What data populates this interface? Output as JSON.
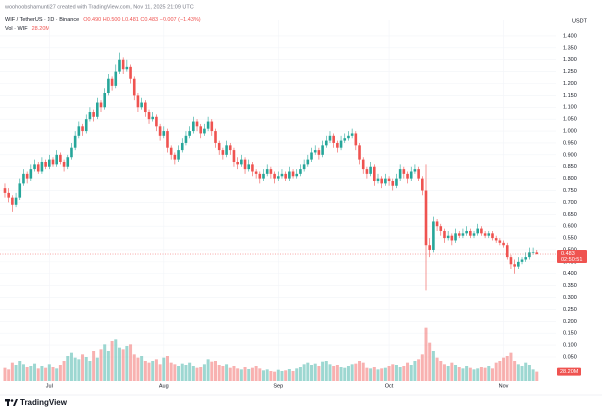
{
  "header": {
    "credit": "woohoobshamunti27 created with TradingView.com, Nov 11, 2025 21:09 UTC"
  },
  "chart_data": {
    "type": "candlestick",
    "symbol": "WIF / TetherUS · 1D · Binance",
    "ohlc_text": "O0.490 H0.500 L0.481 C0.483 −0.007 (−1.43%)",
    "currency": "USDT",
    "countdown": "02:50:51",
    "up_color": "#26a69a",
    "down_color": "#ef5350",
    "grid": true,
    "xlim": [
      -1.35,
      149.2
    ],
    "xticks": [
      {
        "value": 12,
        "label": "Jul"
      },
      {
        "value": 43,
        "label": "Aug"
      },
      {
        "value": 74,
        "label": "Sep"
      },
      {
        "value": 104,
        "label": "Oct"
      },
      {
        "value": 135,
        "label": "Nov"
      }
    ],
    "ylim": [
      -0.114,
      1.467
    ],
    "yticks": [
      {
        "value": 0.05,
        "label": "0.050"
      },
      {
        "value": 0.1,
        "label": "0.100"
      },
      {
        "value": 0.15,
        "label": "0.150"
      },
      {
        "value": 0.2,
        "label": "0.200"
      },
      {
        "value": 0.25,
        "label": "0.250"
      },
      {
        "value": 0.3,
        "label": "0.300"
      },
      {
        "value": 0.35,
        "label": "0.350"
      },
      {
        "value": 0.4,
        "label": "0.400"
      },
      {
        "value": 0.45,
        "label": "0.450"
      },
      {
        "value": 0.5,
        "label": "0.500"
      },
      {
        "value": 0.55,
        "label": "0.550"
      },
      {
        "value": 0.6,
        "label": "0.600"
      },
      {
        "value": 0.65,
        "label": "0.650"
      },
      {
        "value": 0.7,
        "label": "0.700"
      },
      {
        "value": 0.75,
        "label": "0.750"
      },
      {
        "value": 0.8,
        "label": "0.800"
      },
      {
        "value": 0.85,
        "label": "0.850"
      },
      {
        "value": 0.9,
        "label": "0.900"
      },
      {
        "value": 0.95,
        "label": "0.950"
      },
      {
        "value": 1,
        "label": "1.000"
      },
      {
        "value": 1.05,
        "label": "1.050"
      },
      {
        "value": 1.1,
        "label": "1.100"
      },
      {
        "value": 1.15,
        "label": "1.150"
      },
      {
        "value": 1.2,
        "label": "1.200"
      },
      {
        "value": 1.25,
        "label": "1.250"
      },
      {
        "value": 1.3,
        "label": "1.300"
      },
      {
        "value": 1.35,
        "label": "1.350"
      },
      {
        "value": 1.4,
        "label": "1.400"
      }
    ],
    "candles": [
      [
        0.76,
        0.78,
        0.72,
        0.74
      ],
      [
        0.74,
        0.76,
        0.7,
        0.72
      ],
      [
        0.72,
        0.73,
        0.66,
        0.69
      ],
      [
        0.69,
        0.74,
        0.68,
        0.72
      ],
      [
        0.72,
        0.8,
        0.71,
        0.78
      ],
      [
        0.78,
        0.84,
        0.77,
        0.82
      ],
      [
        0.82,
        0.83,
        0.78,
        0.8
      ],
      [
        0.8,
        0.86,
        0.79,
        0.84
      ],
      [
        0.84,
        0.88,
        0.83,
        0.86
      ],
      [
        0.86,
        0.87,
        0.82,
        0.83
      ],
      [
        0.83,
        0.89,
        0.82,
        0.87
      ],
      [
        0.87,
        0.88,
        0.84,
        0.85
      ],
      [
        0.85,
        0.9,
        0.84,
        0.88
      ],
      [
        0.88,
        0.89,
        0.85,
        0.86
      ],
      [
        0.86,
        0.92,
        0.85,
        0.9
      ],
      [
        0.9,
        0.91,
        0.86,
        0.87
      ],
      [
        0.87,
        0.88,
        0.83,
        0.85
      ],
      [
        0.85,
        0.9,
        0.84,
        0.89
      ],
      [
        0.89,
        0.95,
        0.88,
        0.93
      ],
      [
        0.93,
        1.0,
        0.92,
        0.98
      ],
      [
        0.98,
        1.04,
        0.97,
        1.02
      ],
      [
        1.02,
        1.03,
        0.98,
        1.0
      ],
      [
        1.0,
        1.07,
        0.99,
        1.05
      ],
      [
        1.05,
        1.1,
        1.04,
        1.08
      ],
      [
        1.08,
        1.09,
        1.04,
        1.06
      ],
      [
        1.06,
        1.14,
        1.05,
        1.12
      ],
      [
        1.12,
        1.13,
        1.08,
        1.1
      ],
      [
        1.1,
        1.18,
        1.09,
        1.16
      ],
      [
        1.16,
        1.24,
        1.15,
        1.22
      ],
      [
        1.22,
        1.23,
        1.17,
        1.19
      ],
      [
        1.19,
        1.28,
        1.18,
        1.25
      ],
      [
        1.25,
        1.33,
        1.24,
        1.3
      ],
      [
        1.3,
        1.31,
        1.24,
        1.26
      ],
      [
        1.26,
        1.3,
        1.25,
        1.27
      ],
      [
        1.27,
        1.28,
        1.2,
        1.22
      ],
      [
        1.22,
        1.23,
        1.13,
        1.15
      ],
      [
        1.15,
        1.16,
        1.08,
        1.1
      ],
      [
        1.1,
        1.14,
        1.09,
        1.12
      ],
      [
        1.12,
        1.13,
        1.06,
        1.08
      ],
      [
        1.08,
        1.09,
        1.03,
        1.05
      ],
      [
        1.05,
        1.08,
        1.04,
        1.06
      ],
      [
        1.06,
        1.07,
        1.0,
        1.02
      ],
      [
        1.02,
        1.03,
        0.96,
        0.98
      ],
      [
        0.98,
        1.02,
        0.97,
        1.0
      ],
      [
        1.0,
        1.01,
        0.91,
        0.93
      ],
      [
        0.93,
        0.94,
        0.88,
        0.9
      ],
      [
        0.9,
        0.91,
        0.86,
        0.88
      ],
      [
        0.88,
        0.94,
        0.87,
        0.92
      ],
      [
        0.92,
        0.97,
        0.91,
        0.95
      ],
      [
        0.95,
        1.0,
        0.94,
        0.98
      ],
      [
        0.98,
        1.02,
        0.97,
        1.0
      ],
      [
        1.0,
        1.06,
        0.99,
        1.04
      ],
      [
        1.04,
        1.05,
        1.0,
        1.02
      ],
      [
        1.02,
        1.03,
        0.97,
        0.99
      ],
      [
        0.99,
        1.03,
        0.98,
        1.01
      ],
      [
        1.01,
        1.06,
        1.0,
        1.04
      ],
      [
        1.04,
        1.05,
        0.98,
        1.0
      ],
      [
        1.0,
        1.01,
        0.93,
        0.95
      ],
      [
        0.95,
        0.96,
        0.9,
        0.92
      ],
      [
        0.92,
        0.93,
        0.88,
        0.9
      ],
      [
        0.9,
        0.96,
        0.89,
        0.94
      ],
      [
        0.94,
        0.95,
        0.9,
        0.92
      ],
      [
        0.92,
        0.93,
        0.85,
        0.87
      ],
      [
        0.87,
        0.89,
        0.84,
        0.86
      ],
      [
        0.86,
        0.9,
        0.85,
        0.88
      ],
      [
        0.88,
        0.89,
        0.82,
        0.84
      ],
      [
        0.84,
        0.88,
        0.83,
        0.86
      ],
      [
        0.86,
        0.87,
        0.81,
        0.83
      ],
      [
        0.83,
        0.84,
        0.8,
        0.82
      ],
      [
        0.82,
        0.83,
        0.78,
        0.8
      ],
      [
        0.8,
        0.84,
        0.79,
        0.82
      ],
      [
        0.82,
        0.86,
        0.81,
        0.84
      ],
      [
        0.84,
        0.85,
        0.8,
        0.82
      ],
      [
        0.82,
        0.83,
        0.78,
        0.8
      ],
      [
        0.8,
        0.83,
        0.79,
        0.81
      ],
      [
        0.81,
        0.84,
        0.8,
        0.82
      ],
      [
        0.82,
        0.83,
        0.79,
        0.8
      ],
      [
        0.8,
        0.85,
        0.79,
        0.83
      ],
      [
        0.83,
        0.84,
        0.8,
        0.81
      ],
      [
        0.81,
        0.84,
        0.8,
        0.82
      ],
      [
        0.82,
        0.86,
        0.81,
        0.84
      ],
      [
        0.84,
        0.88,
        0.83,
        0.86
      ],
      [
        0.86,
        0.9,
        0.85,
        0.88
      ],
      [
        0.88,
        0.93,
        0.87,
        0.91
      ],
      [
        0.91,
        0.94,
        0.9,
        0.92
      ],
      [
        0.92,
        0.93,
        0.88,
        0.9
      ],
      [
        0.9,
        0.96,
        0.89,
        0.94
      ],
      [
        0.94,
        0.98,
        0.93,
        0.96
      ],
      [
        0.96,
        1.0,
        0.95,
        0.98
      ],
      [
        0.98,
        0.99,
        0.93,
        0.95
      ],
      [
        0.95,
        0.96,
        0.91,
        0.93
      ],
      [
        0.93,
        0.98,
        0.92,
        0.96
      ],
      [
        0.96,
        0.99,
        0.95,
        0.97
      ],
      [
        0.97,
        1.0,
        0.96,
        0.98
      ],
      [
        0.98,
        1.01,
        0.97,
        0.99
      ],
      [
        0.99,
        1.0,
        0.92,
        0.94
      ],
      [
        0.94,
        0.95,
        0.86,
        0.88
      ],
      [
        0.88,
        0.89,
        0.82,
        0.84
      ],
      [
        0.84,
        0.85,
        0.8,
        0.82
      ],
      [
        0.82,
        0.87,
        0.81,
        0.85
      ],
      [
        0.85,
        0.86,
        0.77,
        0.79
      ],
      [
        0.79,
        0.82,
        0.78,
        0.8
      ],
      [
        0.8,
        0.81,
        0.76,
        0.78
      ],
      [
        0.78,
        0.82,
        0.77,
        0.8
      ],
      [
        0.8,
        0.81,
        0.77,
        0.79
      ],
      [
        0.79,
        0.8,
        0.75,
        0.77
      ],
      [
        0.77,
        0.82,
        0.76,
        0.8
      ],
      [
        0.8,
        0.86,
        0.79,
        0.84
      ],
      [
        0.84,
        0.85,
        0.8,
        0.82
      ],
      [
        0.82,
        0.83,
        0.78,
        0.8
      ],
      [
        0.8,
        0.85,
        0.79,
        0.83
      ],
      [
        0.83,
        0.86,
        0.82,
        0.84
      ],
      [
        0.84,
        0.85,
        0.79,
        0.8
      ],
      [
        0.8,
        0.81,
        0.73,
        0.75
      ],
      [
        0.75,
        0.86,
        0.33,
        0.52
      ],
      [
        0.52,
        0.55,
        0.47,
        0.5
      ],
      [
        0.5,
        0.64,
        0.49,
        0.62
      ],
      [
        0.62,
        0.63,
        0.58,
        0.6
      ],
      [
        0.6,
        0.61,
        0.56,
        0.58
      ],
      [
        0.58,
        0.59,
        0.53,
        0.55
      ],
      [
        0.55,
        0.58,
        0.54,
        0.56
      ],
      [
        0.56,
        0.57,
        0.52,
        0.54
      ],
      [
        0.54,
        0.59,
        0.53,
        0.57
      ],
      [
        0.57,
        0.58,
        0.55,
        0.56
      ],
      [
        0.56,
        0.59,
        0.55,
        0.57
      ],
      [
        0.57,
        0.6,
        0.56,
        0.58
      ],
      [
        0.58,
        0.59,
        0.55,
        0.56
      ],
      [
        0.56,
        0.58,
        0.55,
        0.57
      ],
      [
        0.57,
        0.61,
        0.56,
        0.59
      ],
      [
        0.59,
        0.6,
        0.56,
        0.57
      ],
      [
        0.57,
        0.58,
        0.55,
        0.56
      ],
      [
        0.56,
        0.58,
        0.55,
        0.57
      ],
      [
        0.57,
        0.58,
        0.54,
        0.55
      ],
      [
        0.55,
        0.56,
        0.53,
        0.54
      ],
      [
        0.54,
        0.55,
        0.52,
        0.53
      ],
      [
        0.53,
        0.54,
        0.51,
        0.52
      ],
      [
        0.52,
        0.53,
        0.46,
        0.47
      ],
      [
        0.47,
        0.48,
        0.42,
        0.44
      ],
      [
        0.44,
        0.46,
        0.4,
        0.43
      ],
      [
        0.43,
        0.47,
        0.42,
        0.45
      ],
      [
        0.45,
        0.47,
        0.44,
        0.46
      ],
      [
        0.46,
        0.49,
        0.45,
        0.47
      ],
      [
        0.47,
        0.51,
        0.46,
        0.49
      ],
      [
        0.49,
        0.51,
        0.48,
        0.49
      ],
      [
        0.49,
        0.5,
        0.481,
        0.483
      ]
    ],
    "volume": {
      "name": "Vol · WIF",
      "last_label": "28.20M",
      "vlim": [
        0,
        165
      ],
      "values": [
        40,
        35,
        55,
        48,
        60,
        50,
        42,
        45,
        52,
        38,
        45,
        40,
        50,
        42,
        38,
        48,
        60,
        75,
        85,
        70,
        65,
        80,
        72,
        60,
        90,
        70,
        95,
        110,
        90,
        120,
        125,
        100,
        95,
        105,
        110,
        80,
        70,
        75,
        60,
        55,
        60,
        65,
        50,
        70,
        75,
        55,
        50,
        45,
        52,
        48,
        55,
        45,
        40,
        42,
        50,
        65,
        58,
        60,
        48,
        45,
        50,
        40,
        45,
        38,
        35,
        42,
        36,
        40,
        45,
        38,
        32,
        35,
        30,
        28,
        34,
        30,
        32,
        36,
        30,
        38,
        42,
        50,
        55,
        48,
        52,
        45,
        58,
        60,
        50,
        45,
        48,
        42,
        40,
        45,
        50,
        52,
        60,
        55,
        40,
        38,
        42,
        35,
        38,
        40,
        45,
        50,
        48,
        42,
        45,
        55,
        48,
        60,
        65,
        80,
        160,
        115,
        90,
        70,
        60,
        50,
        45,
        55,
        48,
        42,
        38,
        45,
        40,
        35,
        38,
        42,
        40,
        45,
        38,
        55,
        60,
        70,
        75,
        85,
        60,
        50,
        45,
        55,
        48,
        35,
        28.2
      ]
    }
  },
  "footer": {
    "logo": "TradingView"
  }
}
